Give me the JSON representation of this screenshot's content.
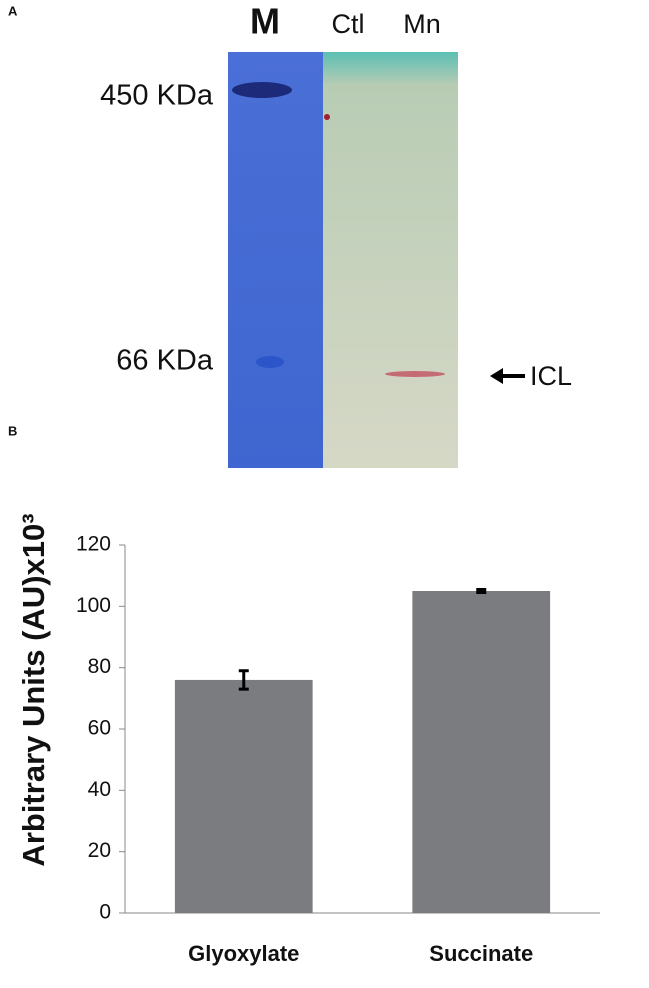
{
  "panel_a": {
    "label": "A",
    "lanes": [
      "M",
      "Ctl",
      "Mn"
    ],
    "markers": [
      "450 KDa",
      "66 KDa"
    ],
    "band_label": "ICL"
  },
  "chart_data": {
    "type": "bar",
    "panel_label": "B",
    "ylabel": "Arbitrary Units (AU)x10³",
    "categories": [
      "Glyoxylate",
      "Succinate"
    ],
    "values": [
      76,
      105
    ],
    "errors": [
      3,
      0.5
    ],
    "color": "#7a7c7f",
    "ylim": [
      0,
      120
    ],
    "yticks": [
      0,
      20,
      40,
      60,
      80,
      100,
      120
    ]
  }
}
